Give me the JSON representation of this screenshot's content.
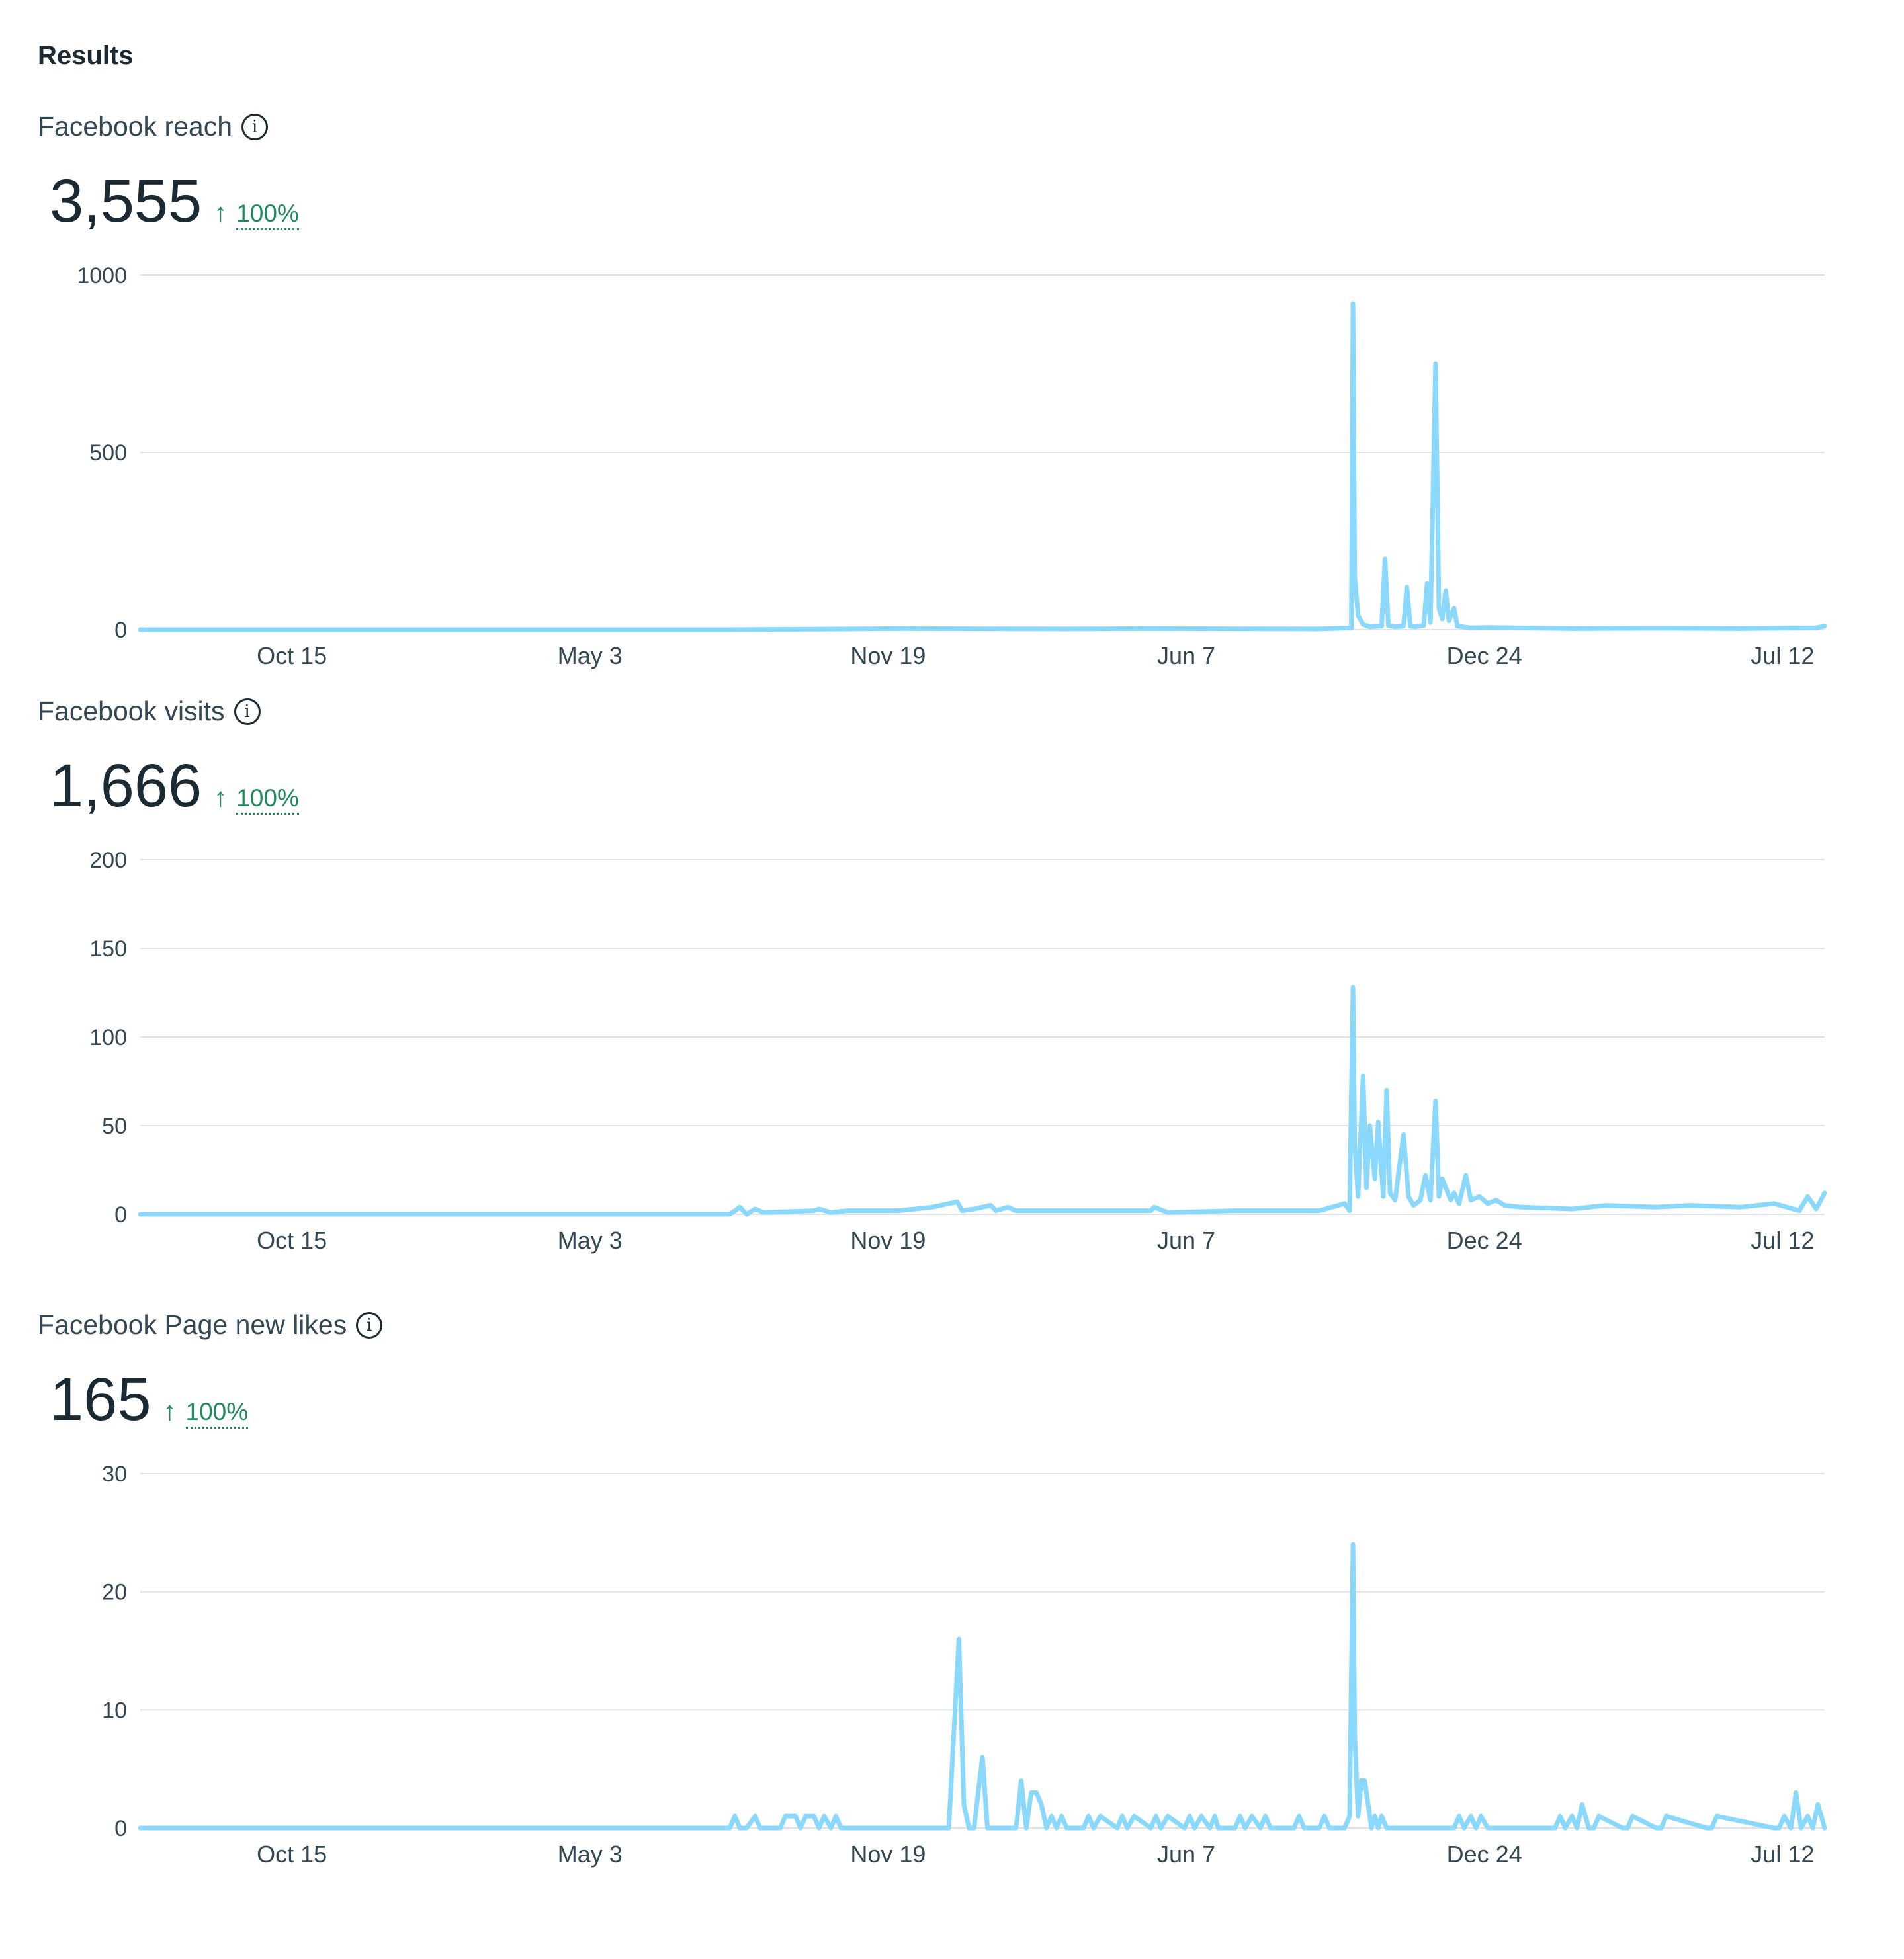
{
  "section_title": "Results",
  "colors": {
    "series": "#8ad8fb",
    "grid": "#dfe3e6",
    "positive": "#1f8a5b"
  },
  "metrics": [
    {
      "label": "Facebook reach",
      "info_icon": "info-icon",
      "value": "3,555",
      "change_icon": "arrow-up-icon",
      "change_arrow": "↑",
      "change": "100%"
    },
    {
      "label": "Facebook visits",
      "info_icon": "info-icon",
      "value": "1,666",
      "change_icon": "arrow-up-icon",
      "change_arrow": "↑",
      "change": "100%"
    },
    {
      "label": "Facebook Page new likes",
      "info_icon": "info-icon",
      "value": "165",
      "change_icon": "arrow-up-icon",
      "change_arrow": "↑",
      "change": "100%"
    }
  ],
  "chart_data": [
    {
      "type": "line",
      "xlim": [
        0,
        100
      ],
      "ylim": [
        0,
        1000
      ],
      "yticks": [
        "0",
        "500",
        "1000"
      ],
      "ytick_values": [
        0,
        500,
        1000
      ],
      "xticks": [
        "Oct 15",
        "May 3",
        "Nov 19",
        "Jun 7",
        "Dec 24",
        "Jul 12"
      ],
      "xtick_positions": [
        9,
        26.7,
        44.4,
        62.1,
        79.8,
        97.5
      ],
      "grid": true,
      "series": [
        {
          "x": [
            0,
            35,
            45,
            55,
            60,
            70,
            71.9,
            72.0,
            72.1,
            72.3,
            72.6,
            73.0,
            73.7,
            73.9,
            74.1,
            74.5,
            75.0,
            75.2,
            75.4,
            75.7,
            76.2,
            76.4,
            76.6,
            76.9,
            77.1,
            77.3,
            77.5,
            77.7,
            78.0,
            78.2,
            78.5,
            79,
            80,
            85,
            90,
            95,
            99.5,
            100
          ],
          "y": [
            0,
            0,
            3,
            2,
            3,
            2,
            5,
            920,
            150,
            40,
            15,
            8,
            10,
            200,
            12,
            8,
            10,
            120,
            10,
            8,
            12,
            130,
            20,
            750,
            60,
            30,
            110,
            25,
            60,
            10,
            8,
            5,
            6,
            3,
            4,
            3,
            5,
            10
          ]
        }
      ]
    },
    {
      "type": "line",
      "xlim": [
        0,
        100
      ],
      "ylim": [
        0,
        200
      ],
      "yticks": [
        "0",
        "50",
        "100",
        "150",
        "200"
      ],
      "ytick_values": [
        0,
        50,
        100,
        150,
        200
      ],
      "xticks": [
        "Oct 15",
        "May 3",
        "Nov 19",
        "Jun 7",
        "Dec 24",
        "Jul 12"
      ],
      "xtick_positions": [
        9,
        26.7,
        44.4,
        62.1,
        79.8,
        97.5
      ],
      "grid": true,
      "series": [
        {
          "x": [
            0,
            35,
            35.6,
            36,
            36.5,
            37,
            40,
            40.3,
            41,
            42,
            45,
            46,
            47,
            48.5,
            48.8,
            49.5,
            50.5,
            50.8,
            51.5,
            52,
            55,
            60,
            60.2,
            61,
            65,
            70,
            71.5,
            71.8,
            72.0,
            72.1,
            72.3,
            72.6,
            72.8,
            73.0,
            73.3,
            73.5,
            73.8,
            74.0,
            74.2,
            74.5,
            75.0,
            75.3,
            75.6,
            76.0,
            76.3,
            76.6,
            76.9,
            77.1,
            77.3,
            77.8,
            78.0,
            78.3,
            78.7,
            79.0,
            79.5,
            80,
            80.5,
            81,
            82,
            85,
            87,
            90,
            92,
            95,
            97,
            98.5,
            99.0,
            99.5,
            100
          ],
          "y": [
            0,
            0,
            4,
            0,
            3,
            1,
            2,
            3,
            1,
            2,
            2,
            3,
            4,
            7,
            2,
            3,
            5,
            2,
            4,
            2,
            2,
            2,
            4,
            1,
            2,
            2,
            6,
            2,
            128,
            40,
            10,
            78,
            15,
            50,
            20,
            52,
            10,
            70,
            12,
            8,
            45,
            10,
            5,
            8,
            22,
            8,
            64,
            10,
            20,
            8,
            12,
            6,
            22,
            8,
            10,
            6,
            8,
            5,
            4,
            3,
            5,
            4,
            5,
            4,
            6,
            2,
            10,
            3,
            12
          ]
        }
      ]
    },
    {
      "type": "line",
      "xlim": [
        0,
        100
      ],
      "ylim": [
        0,
        30
      ],
      "yticks": [
        "0",
        "10",
        "20",
        "30"
      ],
      "ytick_values": [
        0,
        10,
        20,
        30
      ],
      "xticks": [
        "Oct 15",
        "May 3",
        "Nov 19",
        "Jun 7",
        "Dec 24",
        "Jul 12"
      ],
      "xtick_positions": [
        9,
        26.7,
        44.4,
        62.1,
        79.8,
        97.5
      ],
      "grid": true,
      "series": [
        {
          "x": [
            0,
            35,
            35.3,
            35.6,
            36,
            36.5,
            36.8,
            38,
            38.3,
            38.6,
            38.9,
            39.2,
            39.5,
            40.0,
            40.3,
            40.6,
            41,
            41.3,
            41.6,
            48,
            48.6,
            48.9,
            49.2,
            49.5,
            50,
            50.3,
            50.7,
            51,
            51.2,
            52,
            52.3,
            52.6,
            52.9,
            53.2,
            53.5,
            53.8,
            54.1,
            54.4,
            54.7,
            55,
            56,
            56.3,
            56.6,
            57,
            58,
            58.3,
            58.6,
            59,
            60,
            60.3,
            60.6,
            61,
            62,
            62.3,
            62.6,
            63,
            63.5,
            63.8,
            64,
            65,
            65.3,
            65.6,
            66,
            66.5,
            66.8,
            67.1,
            68.5,
            68.8,
            69.1,
            70,
            70.3,
            70.6,
            71.5,
            71.8,
            72.0,
            72.1,
            72.3,
            72.5,
            72.7,
            72.9,
            73.1,
            73.3,
            73.5,
            73.7,
            74,
            78,
            78.3,
            78.6,
            79,
            79.3,
            79.6,
            80,
            84,
            84.3,
            84.6,
            85,
            85.3,
            85.6,
            86,
            86.3,
            86.6,
            88,
            88.3,
            88.6,
            90,
            90.3,
            90.6,
            93,
            93.3,
            93.6,
            97,
            97.3,
            97.6,
            98,
            98.3,
            98.6,
            99,
            99.3,
            99.6,
            100
          ],
          "y": [
            0,
            0,
            1,
            0,
            0,
            1,
            0,
            0,
            1,
            1,
            1,
            0,
            1,
            1,
            0,
            1,
            0,
            1,
            0,
            0,
            16,
            2,
            0,
            0,
            6,
            0,
            0,
            0,
            0,
            0,
            4,
            0,
            3,
            3,
            2,
            0,
            1,
            0,
            1,
            0,
            0,
            1,
            0,
            1,
            0,
            1,
            0,
            1,
            0,
            1,
            0,
            1,
            0,
            1,
            0,
            1,
            0,
            1,
            0,
            0,
            1,
            0,
            1,
            0,
            1,
            0,
            0,
            1,
            0,
            0,
            1,
            0,
            0,
            1,
            24,
            8,
            1,
            4,
            4,
            2,
            0,
            1,
            0,
            1,
            0,
            0,
            1,
            0,
            1,
            0,
            1,
            0,
            0,
            1,
            0,
            1,
            0,
            2,
            0,
            0,
            1,
            0,
            0,
            1,
            0,
            0,
            1,
            0,
            0,
            1,
            0,
            0,
            1,
            0,
            3,
            0,
            1,
            0,
            2,
            0
          ]
        }
      ]
    }
  ]
}
